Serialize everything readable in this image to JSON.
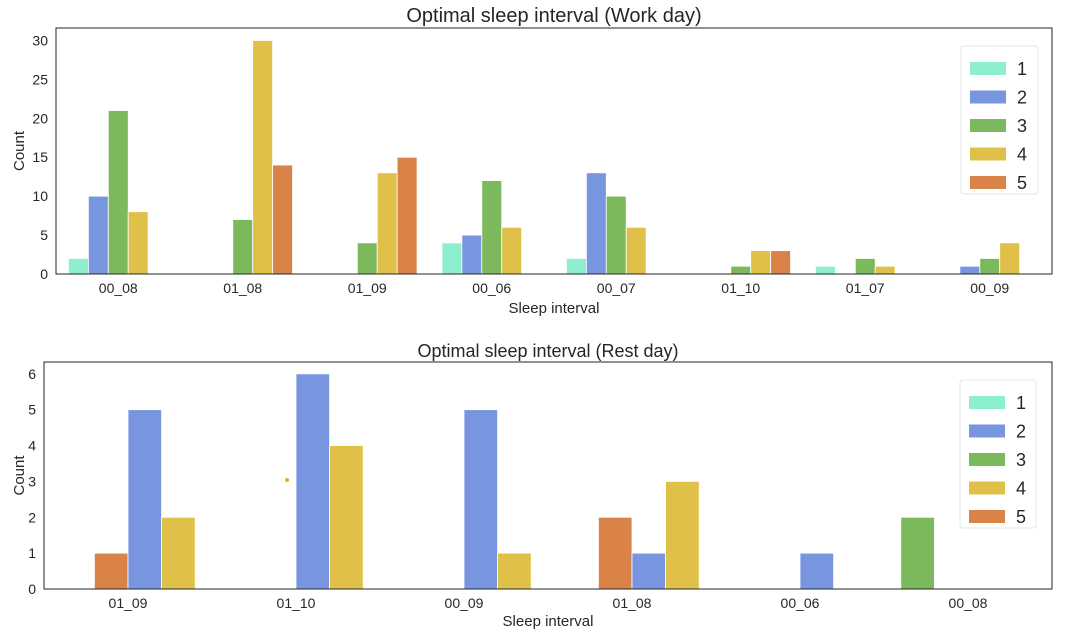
{
  "chart_data": [
    {
      "type": "bar",
      "title": "Optimal sleep interval (Work day)",
      "xlabel": "Sleep interval",
      "ylabel": "Count",
      "ylim": [
        0,
        31.6
      ],
      "yticks": [
        0,
        5,
        10,
        15,
        20,
        25,
        30
      ],
      "grid": false,
      "legend_position": "top-right",
      "categories": [
        "00_08",
        "01_08",
        "01_09",
        "00_06",
        "00_07",
        "01_10",
        "01_07",
        "00_09"
      ],
      "hue_order": [
        "1",
        "2",
        "3",
        "4",
        "5"
      ],
      "series": [
        {
          "name": "1",
          "color": "#8eefcf",
          "values": [
            2,
            0,
            0,
            4,
            2,
            0,
            1,
            0
          ]
        },
        {
          "name": "2",
          "color": "#7896e0",
          "values": [
            10,
            0,
            0,
            5,
            13,
            0,
            0,
            1
          ]
        },
        {
          "name": "3",
          "color": "#7cb95c",
          "values": [
            21,
            7,
            4,
            12,
            10,
            1,
            2,
            2
          ]
        },
        {
          "name": "4",
          "color": "#dfc048",
          "values": [
            8,
            30,
            13,
            6,
            6,
            3,
            1,
            4
          ]
        },
        {
          "name": "5",
          "color": "#d98348",
          "values": [
            0,
            14,
            15,
            0,
            0,
            3,
            0,
            0
          ]
        }
      ]
    },
    {
      "type": "bar",
      "title": "Optimal sleep interval (Rest day)",
      "xlabel": "Sleep interval",
      "ylabel": "Count",
      "ylim": [
        0,
        6.33
      ],
      "yticks": [
        0,
        1,
        2,
        3,
        4,
        5,
        6
      ],
      "grid": false,
      "legend_position": "top-right",
      "categories": [
        "01_09",
        "01_10",
        "00_09",
        "01_08",
        "00_06",
        "00_08"
      ],
      "hue_order": [
        "3",
        "5",
        "2",
        "4"
      ],
      "series": [
        {
          "name": "1",
          "color": "#8eefcf",
          "values": [
            0,
            0,
            0,
            0,
            0,
            0
          ]
        },
        {
          "name": "2",
          "color": "#7896e0",
          "values": [
            5,
            6,
            5,
            1,
            1,
            0
          ]
        },
        {
          "name": "3",
          "color": "#7cb95c",
          "values": [
            0,
            0,
            0,
            0,
            0,
            2
          ]
        },
        {
          "name": "4",
          "color": "#dfc048",
          "values": [
            2,
            4,
            1,
            3,
            0,
            0
          ]
        },
        {
          "name": "5",
          "color": "#d98348",
          "values": [
            1,
            0,
            0,
            2,
            0,
            0
          ]
        }
      ]
    }
  ]
}
